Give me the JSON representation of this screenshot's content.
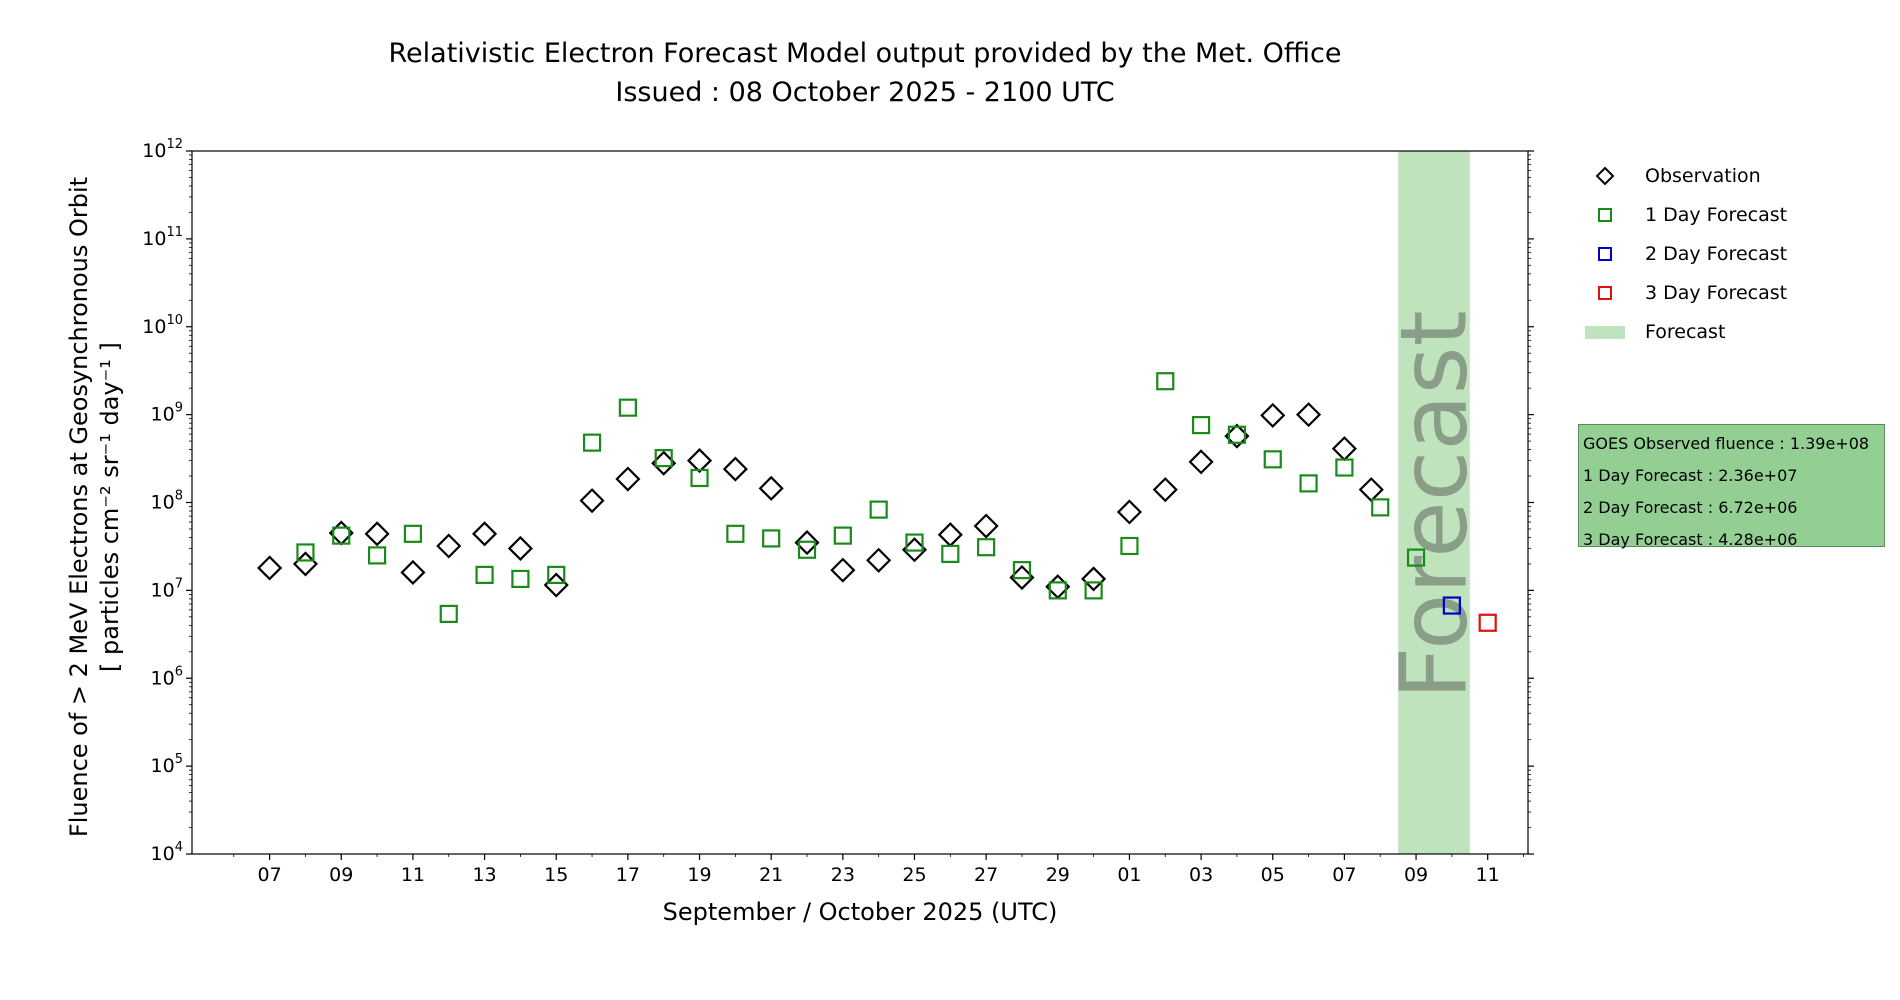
{
  "chart_data": {
    "type": "scatter",
    "title": "Relativistic Electron Forecast Model output provided by the Met. Office",
    "subtitle": "Issued : 08 October 2025 - 2100 UTC",
    "xlabel": "September / October 2025 (UTC)",
    "ylabel_line1": "Fluence of > 2 MeV Electrons at Geosynchronous Orbit",
    "ylabel_line2": "[ particles cm⁻² sr⁻¹ day⁻¹ ]",
    "yscale": "log",
    "ylim": [
      10000.0,
      1000000000000.0
    ],
    "y_ticks": [
      {
        "value": 10000.0,
        "base": "10",
        "exp": "4"
      },
      {
        "value": 100000.0,
        "base": "10",
        "exp": "5"
      },
      {
        "value": 1000000.0,
        "base": "10",
        "exp": "6"
      },
      {
        "value": 10000000.0,
        "base": "10",
        "exp": "7"
      },
      {
        "value": 100000000.0,
        "base": "10",
        "exp": "8"
      },
      {
        "value": 1000000000.0,
        "base": "10",
        "exp": "9"
      },
      {
        "value": 10000000000.0,
        "base": "10",
        "exp": "10"
      },
      {
        "value": 100000000000.0,
        "base": "10",
        "exp": "11"
      },
      {
        "value": 1000000000000.0,
        "base": "10",
        "exp": "12"
      }
    ],
    "xlim": [
      "2025-09-05T08:00",
      "2025-10-12T15:00"
    ],
    "x_ticks": [
      {
        "date": "2025-09-07T12:00",
        "label": "07"
      },
      {
        "date": "2025-09-09T12:00",
        "label": "09"
      },
      {
        "date": "2025-09-11T12:00",
        "label": "11"
      },
      {
        "date": "2025-09-13T12:00",
        "label": "13"
      },
      {
        "date": "2025-09-15T12:00",
        "label": "15"
      },
      {
        "date": "2025-09-17T12:00",
        "label": "17"
      },
      {
        "date": "2025-09-19T12:00",
        "label": "19"
      },
      {
        "date": "2025-09-21T12:00",
        "label": "21"
      },
      {
        "date": "2025-09-23T12:00",
        "label": "23"
      },
      {
        "date": "2025-09-25T12:00",
        "label": "25"
      },
      {
        "date": "2025-09-27T12:00",
        "label": "27"
      },
      {
        "date": "2025-09-29T12:00",
        "label": "29"
      },
      {
        "date": "2025-10-01T12:00",
        "label": "01"
      },
      {
        "date": "2025-10-03T12:00",
        "label": "03"
      },
      {
        "date": "2025-10-05T12:00",
        "label": "05"
      },
      {
        "date": "2025-10-07T12:00",
        "label": "07"
      },
      {
        "date": "2025-10-09T12:00",
        "label": "09"
      },
      {
        "date": "2025-10-11T12:00",
        "label": "11"
      }
    ],
    "grid": false,
    "legend_position": "top-right, outside plot",
    "forecast_region": {
      "start": "2025-10-09T00:00",
      "end": "2025-10-11T00:00",
      "label": "Forecast",
      "color": "#bfe3bd",
      "label_color": "#8a9d88"
    },
    "series": [
      {
        "name": "Observation",
        "marker": "diamond",
        "color": "#000000",
        "points": [
          [
            "2025-09-07T12:00",
            18000000.0
          ],
          [
            "2025-09-08T12:00",
            20000000.0
          ],
          [
            "2025-09-09T12:00",
            45000000.0
          ],
          [
            "2025-09-10T12:00",
            44000000.0
          ],
          [
            "2025-09-11T12:00",
            16000000.0
          ],
          [
            "2025-09-12T12:00",
            32000000.0
          ],
          [
            "2025-09-13T12:00",
            44000000.0
          ],
          [
            "2025-09-14T12:00",
            30000000.0
          ],
          [
            "2025-09-15T12:00",
            11500000.0
          ],
          [
            "2025-09-16T12:00",
            105000000.0
          ],
          [
            "2025-09-17T12:00",
            185000000.0
          ],
          [
            "2025-09-18T12:00",
            280000000.0
          ],
          [
            "2025-09-19T12:00",
            300000000.0
          ],
          [
            "2025-09-20T12:00",
            240000000.0
          ],
          [
            "2025-09-21T12:00",
            145000000.0
          ],
          [
            "2025-09-22T12:00",
            35000000.0
          ],
          [
            "2025-09-23T12:00",
            17000000.0
          ],
          [
            "2025-09-24T12:00",
            22000000.0
          ],
          [
            "2025-09-25T12:00",
            29000000.0
          ],
          [
            "2025-09-26T12:00",
            43000000.0
          ],
          [
            "2025-09-27T12:00",
            54000000.0
          ],
          [
            "2025-09-28T12:00",
            14000000.0
          ],
          [
            "2025-09-29T12:00",
            11000000.0
          ],
          [
            "2025-09-30T12:00",
            13500000.0
          ],
          [
            "2025-10-01T12:00",
            78000000.0
          ],
          [
            "2025-10-02T12:00",
            140000000.0
          ],
          [
            "2025-10-03T12:00",
            290000000.0
          ],
          [
            "2025-10-04T12:00",
            570000000.0
          ],
          [
            "2025-10-05T12:00",
            980000000.0
          ],
          [
            "2025-10-06T12:00",
            1000000000.0
          ],
          [
            "2025-10-07T12:00",
            410000000.0
          ],
          [
            "2025-10-08T06:00",
            140000000.0
          ]
        ]
      },
      {
        "name": "1 Day Forecast",
        "marker": "square",
        "color": "#1a8a1a",
        "points": [
          [
            "2025-09-08T12:00",
            27000000.0
          ],
          [
            "2025-09-09T12:00",
            42000000.0
          ],
          [
            "2025-09-10T12:00",
            25000000.0
          ],
          [
            "2025-09-11T12:00",
            44000000.0
          ],
          [
            "2025-09-12T12:00",
            5400000.0
          ],
          [
            "2025-09-13T12:00",
            15000000.0
          ],
          [
            "2025-09-14T12:00",
            13500000.0
          ],
          [
            "2025-09-15T12:00",
            15000000.0
          ],
          [
            "2025-09-16T12:00",
            480000000.0
          ],
          [
            "2025-09-17T12:00",
            1200000000.0
          ],
          [
            "2025-09-18T12:00",
            320000000.0
          ],
          [
            "2025-09-19T12:00",
            190000000.0
          ],
          [
            "2025-09-20T12:00",
            44000000.0
          ],
          [
            "2025-09-21T12:00",
            39000000.0
          ],
          [
            "2025-09-22T12:00",
            29000000.0
          ],
          [
            "2025-09-23T12:00",
            42000000.0
          ],
          [
            "2025-09-24T12:00",
            83000000.0
          ],
          [
            "2025-09-25T12:00",
            35000000.0
          ],
          [
            "2025-09-26T12:00",
            26000000.0
          ],
          [
            "2025-09-27T12:00",
            31000000.0
          ],
          [
            "2025-09-28T12:00",
            17000000.0
          ],
          [
            "2025-09-29T12:00",
            10000000.0
          ],
          [
            "2025-09-30T12:00",
            10000000.0
          ],
          [
            "2025-10-01T12:00",
            32000000.0
          ],
          [
            "2025-10-02T12:00",
            2400000000.0
          ],
          [
            "2025-10-03T12:00",
            760000000.0
          ],
          [
            "2025-10-04T12:00",
            590000000.0
          ],
          [
            "2025-10-05T12:00",
            310000000.0
          ],
          [
            "2025-10-06T12:00",
            165000000.0
          ],
          [
            "2025-10-07T12:00",
            250000000.0
          ],
          [
            "2025-10-08T12:00",
            88000000.0
          ],
          [
            "2025-10-09T12:00",
            23600000.0
          ]
        ]
      },
      {
        "name": "2 Day Forecast",
        "marker": "square",
        "color": "#0000cc",
        "points": [
          [
            "2025-10-10T12:00",
            6720000.0
          ]
        ]
      },
      {
        "name": "3 Day Forecast",
        "marker": "square",
        "color": "#e01010",
        "points": [
          [
            "2025-10-11T12:00",
            4280000.0
          ]
        ]
      }
    ],
    "legend": [
      {
        "label": "Observation",
        "marker": "diamond",
        "color": "#000000"
      },
      {
        "label": "1 Day Forecast",
        "marker": "square",
        "color": "#1a8a1a"
      },
      {
        "label": "2 Day Forecast",
        "marker": "square",
        "color": "#0000cc"
      },
      {
        "label": "3 Day Forecast",
        "marker": "square",
        "color": "#e01010"
      },
      {
        "label": "Forecast",
        "marker": "patch",
        "color": "#bfe3bd"
      }
    ],
    "stats_box": {
      "observed": "GOES Observed fluence : 1.39e+08",
      "day1": "1 Day Forecast : 2.36e+07",
      "day2": "2 Day Forecast : 6.72e+06",
      "day3": "3 Day Forecast : 4.28e+06"
    }
  }
}
